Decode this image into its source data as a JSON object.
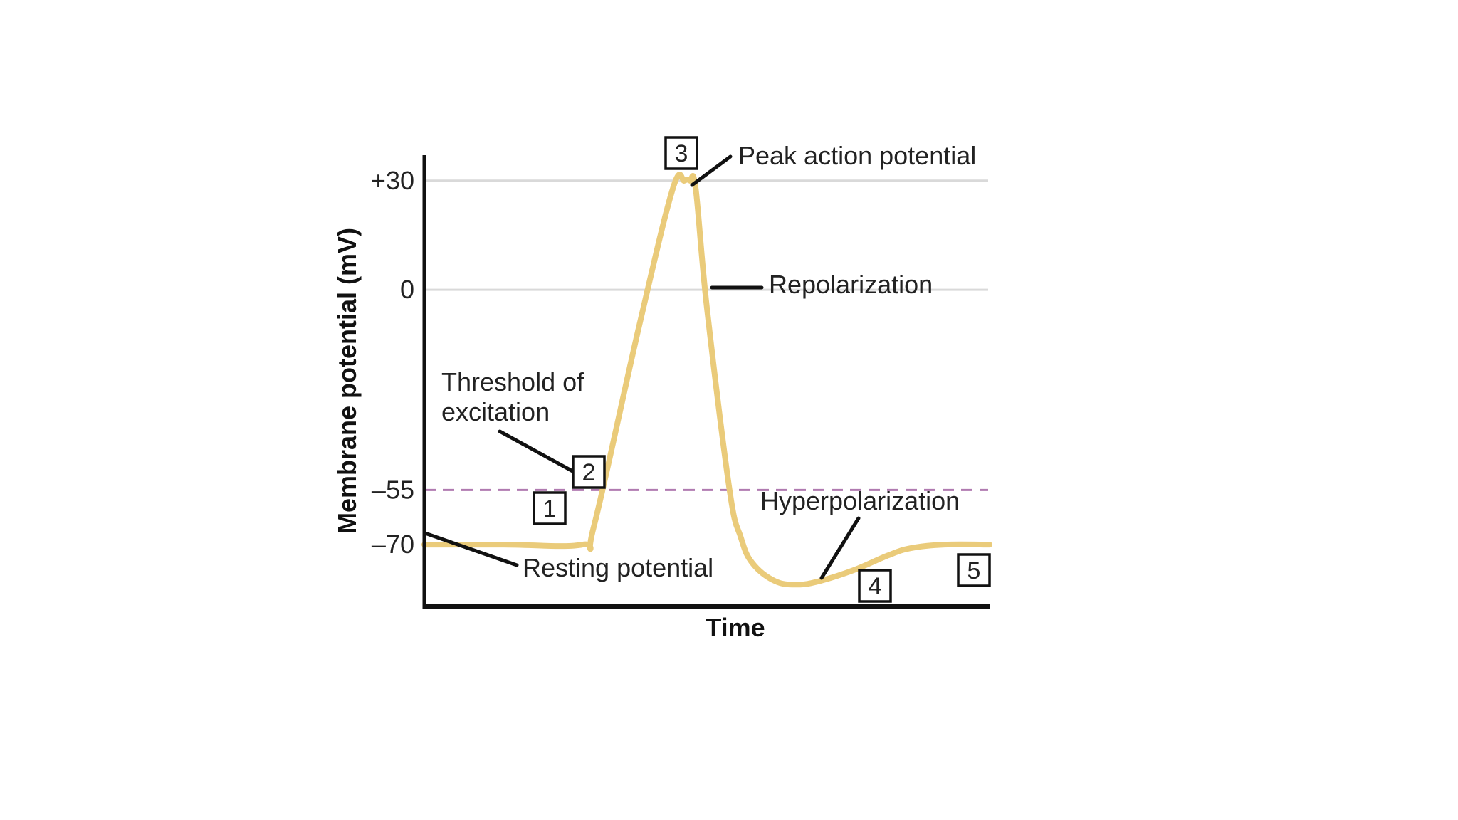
{
  "chart_data": {
    "type": "line",
    "xlabel": "Time",
    "ylabel": "Membrane potential (mV)",
    "y_ticks": [
      {
        "value": 30,
        "label": "+30"
      },
      {
        "value": 0,
        "label": "0"
      },
      {
        "value": -55,
        "label": "–55"
      },
      {
        "value": -70,
        "label": "–70"
      }
    ],
    "gridlines_at": [
      30,
      0
    ],
    "threshold": -55,
    "series": [
      {
        "x": [
          0,
          14,
          28,
          30,
          38,
          44,
          46,
          47,
          48,
          50,
          54,
          56,
          58,
          62,
          66,
          70,
          76,
          82,
          86,
          92,
          100
        ],
        "values": [
          -70,
          -70,
          -70,
          -65,
          -10,
          28,
          30,
          30,
          28,
          -5,
          -55,
          -68,
          -75,
          -80,
          -81,
          -80,
          -77,
          -73,
          -71,
          -70,
          -70
        ]
      }
    ],
    "xlim": [
      0,
      100
    ],
    "ylim": [
      -87,
      37
    ],
    "grid": "horizontal lines at +30 and 0",
    "colors": {
      "trace": "#EACB7A",
      "threshold_line": "#B07AB0",
      "gridline": "#D9D9D9",
      "axis": "#111111"
    },
    "annotations": [
      {
        "id": "peak",
        "text": "Peak action potential",
        "box": "3"
      },
      {
        "id": "repolarization",
        "text": "Repolarization"
      },
      {
        "id": "threshold",
        "text": "Threshold of\nexcitation",
        "box": "2"
      },
      {
        "id": "resting",
        "text": "Resting potential",
        "box": "1"
      },
      {
        "id": "hyperpolarization",
        "text": "Hyperpolarization",
        "box": "4"
      },
      {
        "id": "return",
        "text": "",
        "box": "5"
      }
    ]
  }
}
